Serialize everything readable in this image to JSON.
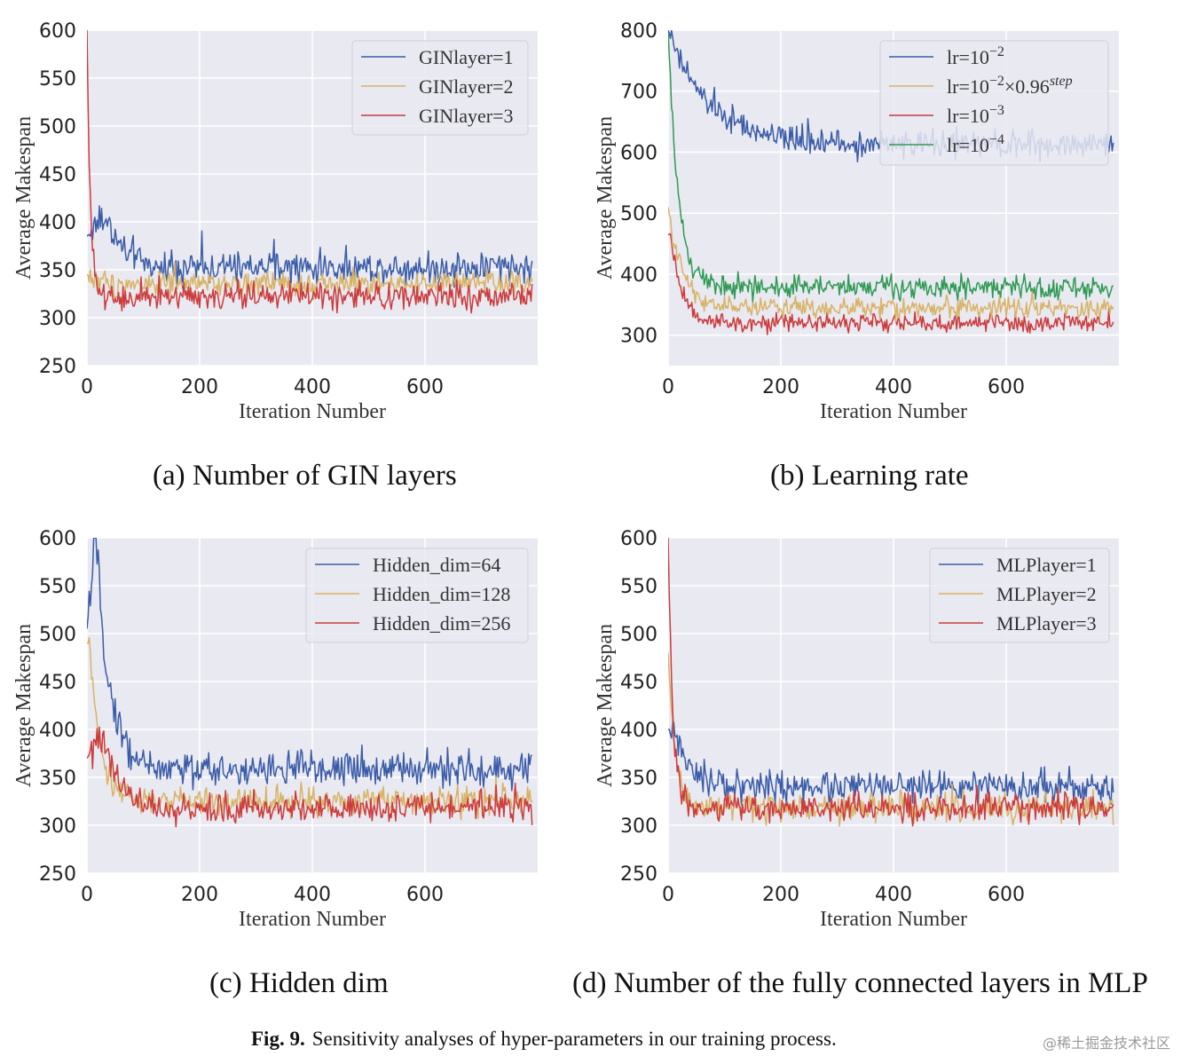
{
  "colors": {
    "plot_bg": "#e9e9f2",
    "grid": "#ffffff",
    "blue": "#3a5ca8",
    "orange": "#d8b366",
    "red": "#cc3b3b",
    "green": "#2f9a52"
  },
  "chart_data": [
    {
      "id": "a",
      "type": "line",
      "caption": "(a) Number of GIN layers",
      "xlabel": "Iteration Number",
      "ylabel": "Average Makespan",
      "xlim": [
        0,
        800
      ],
      "ylim": [
        250,
        600
      ],
      "xticks": [
        0,
        200,
        400,
        600
      ],
      "yticks": [
        250,
        300,
        350,
        400,
        450,
        500,
        550,
        600
      ],
      "legend_position": "top-right",
      "series": [
        {
          "name": "GINlayer=1",
          "color": "blue",
          "start": 385,
          "peak": 405,
          "peak_iter": 30,
          "plateau": 352,
          "noise": 10,
          "decay": 35
        },
        {
          "name": "GINlayer=2",
          "color": "orange",
          "start": 345,
          "peak": 345,
          "peak_iter": 0,
          "plateau": 335,
          "noise": 8,
          "decay": 20
        },
        {
          "name": "GINlayer=3",
          "color": "red",
          "start": 600,
          "peak": 600,
          "peak_iter": 0,
          "plateau": 322,
          "noise": 9,
          "decay": 6
        }
      ]
    },
    {
      "id": "b",
      "type": "line",
      "caption": "(b) Learning rate",
      "xlabel": "Iteration Number",
      "ylabel": "Average Makespan",
      "xlim": [
        0,
        800
      ],
      "ylim": [
        250,
        800
      ],
      "xticks": [
        0,
        200,
        400,
        600
      ],
      "yticks": [
        300,
        400,
        500,
        600,
        700,
        800
      ],
      "legend_position": "top-right",
      "series": [
        {
          "name": "lr=10",
          "sup": "−2",
          "tail": "",
          "tailsup": "",
          "color": "blue",
          "start": 800,
          "peak": 800,
          "peak_iter": 0,
          "plateau": 612,
          "noise": 13,
          "decay": 70
        },
        {
          "name": "lr=10",
          "sup": "−2",
          "tail": "×0.96",
          "tailsup": "step",
          "color": "orange",
          "start": 510,
          "peak": 510,
          "peak_iter": 0,
          "plateau": 345,
          "noise": 10,
          "decay": 25
        },
        {
          "name": "lr=10",
          "sup": "−3",
          "tail": "",
          "tailsup": "",
          "color": "red",
          "start": 465,
          "peak": 465,
          "peak_iter": 5,
          "plateau": 320,
          "noise": 9,
          "decay": 20
        },
        {
          "name": "lr=10",
          "sup": "−4",
          "tail": "",
          "tailsup": "",
          "color": "green",
          "start": 800,
          "peak": 800,
          "peak_iter": 0,
          "plateau": 378,
          "noise": 11,
          "decay": 18
        }
      ]
    },
    {
      "id": "c",
      "type": "line",
      "caption": "(c) Hidden dim",
      "xlabel": "Iteration Number",
      "ylabel": "Average Makespan",
      "xlim": [
        0,
        800
      ],
      "ylim": [
        250,
        600
      ],
      "xticks": [
        0,
        200,
        400,
        600
      ],
      "yticks": [
        250,
        300,
        350,
        400,
        450,
        500,
        550,
        600
      ],
      "legend_position": "top-right",
      "series": [
        {
          "name": "Hidden_dim=64",
          "color": "blue",
          "start": 505,
          "peak": 600,
          "peak_iter": 15,
          "plateau": 358,
          "noise": 11,
          "decay": 25
        },
        {
          "name": "Hidden_dim=128",
          "color": "orange",
          "start": 490,
          "peak": 490,
          "peak_iter": 5,
          "plateau": 325,
          "noise": 9,
          "decay": 18
        },
        {
          "name": "Hidden_dim=256",
          "color": "red",
          "start": 370,
          "peak": 395,
          "peak_iter": 30,
          "plateau": 318,
          "noise": 10,
          "decay": 25
        }
      ]
    },
    {
      "id": "d",
      "type": "line",
      "caption": "(d) Number of the fully connected layers in MLP",
      "xlabel": "Iteration Number",
      "ylabel": "Average Makespan",
      "xlim": [
        0,
        800
      ],
      "ylim": [
        250,
        600
      ],
      "xticks": [
        0,
        200,
        400,
        600
      ],
      "yticks": [
        250,
        300,
        350,
        400,
        450,
        500,
        550,
        600
      ],
      "legend_position": "top-right",
      "series": [
        {
          "name": "MLPlayer=1",
          "color": "blue",
          "start": 400,
          "peak": 400,
          "peak_iter": 10,
          "plateau": 340,
          "noise": 10,
          "decay": 25
        },
        {
          "name": "MLPlayer=2",
          "color": "orange",
          "start": 480,
          "peak": 480,
          "peak_iter": 0,
          "plateau": 318,
          "noise": 9,
          "decay": 12
        },
        {
          "name": "MLPlayer=3",
          "color": "red",
          "start": 600,
          "peak": 600,
          "peak_iter": 0,
          "plateau": 318,
          "noise": 9,
          "decay": 8
        }
      ]
    }
  ],
  "figure_caption": {
    "label": "Fig. 9.",
    "text": "Sensitivity analyses of hyper-parameters in our training process."
  },
  "watermark": "@稀土掘金技术社区"
}
